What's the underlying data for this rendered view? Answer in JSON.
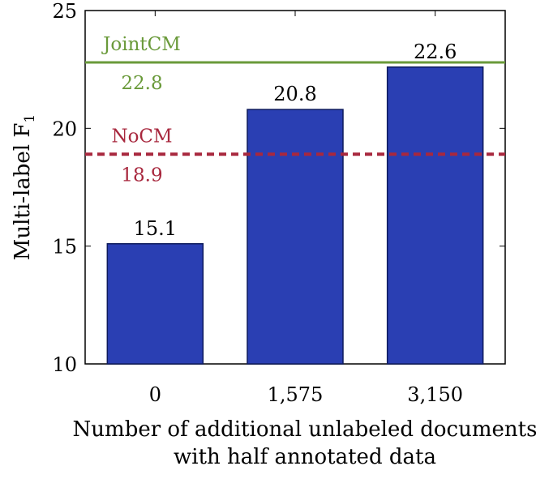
{
  "chart_data": {
    "type": "bar",
    "categories": [
      "0",
      "1,575",
      "3,150"
    ],
    "values": [
      15.1,
      20.8,
      22.6
    ],
    "value_labels": [
      "15.1",
      "20.8",
      "22.6"
    ],
    "ylabel": "Multi-label F",
    "ylabel_subscript": "1",
    "xlabel_lines": [
      "Number of additional unlabeled documents",
      "with half annotated data"
    ],
    "ylim": [
      10,
      25
    ],
    "yticks": [
      10,
      15,
      20,
      25
    ],
    "ytick_labels": [
      "10",
      "15",
      "20",
      "25"
    ],
    "grid": false,
    "bar_color": "#2a3fb3",
    "reference_lines": [
      {
        "name": "JointCM",
        "value": 22.8,
        "value_label": "22.8",
        "style": "solid",
        "color": "#6a9a3a"
      },
      {
        "name": "NoCM",
        "value": 18.9,
        "value_label": "18.9",
        "style": "dashed",
        "color": "#a8283e"
      }
    ]
  }
}
